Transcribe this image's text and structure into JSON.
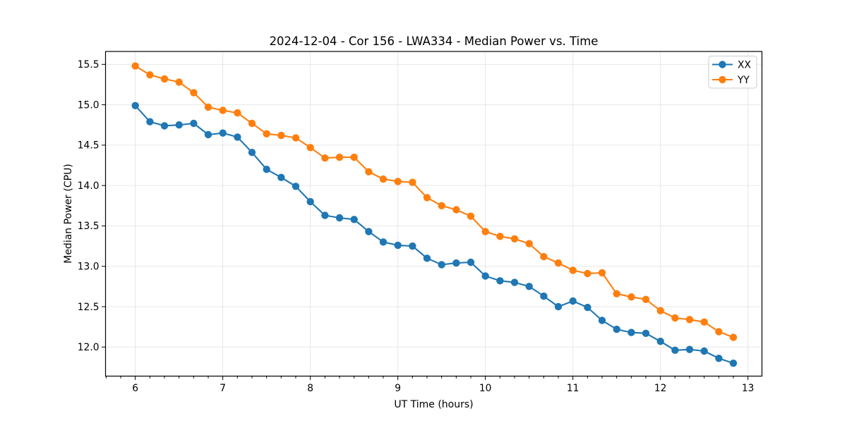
{
  "figure": {
    "background": "#ffffff"
  },
  "chart_data": {
    "type": "line",
    "title": "2024-12-04 - Cor 156 - LWA334 - Median Power vs. Time",
    "xlabel": "UT Time (hours)",
    "ylabel": "Median Power (CPU)",
    "xlim": [
      5.66,
      13.16
    ],
    "ylim": [
      11.64,
      15.66
    ],
    "x_major_ticks": [
      6,
      7,
      8,
      9,
      10,
      11,
      12,
      13
    ],
    "x_minor_step": 0.1667,
    "y_major_ticks": [
      12.0,
      12.5,
      13.0,
      13.5,
      14.0,
      14.5,
      15.0,
      15.5
    ],
    "grid": "major-only",
    "legend": {
      "position": "upper-right"
    },
    "x": [
      6.0,
      6.167,
      6.333,
      6.5,
      6.667,
      6.833,
      7.0,
      7.167,
      7.333,
      7.5,
      7.667,
      7.833,
      8.0,
      8.167,
      8.333,
      8.5,
      8.667,
      8.833,
      9.0,
      9.167,
      9.333,
      9.5,
      9.667,
      9.833,
      10.0,
      10.167,
      10.333,
      10.5,
      10.667,
      10.833,
      11.0,
      11.167,
      11.333,
      11.5,
      11.667,
      11.833,
      12.0,
      12.167,
      12.333,
      12.5,
      12.667,
      12.833
    ],
    "series": [
      {
        "name": "XX",
        "color": "#1f77b4",
        "marker": "circle",
        "values": [
          14.99,
          14.79,
          14.74,
          14.75,
          14.77,
          14.63,
          14.65,
          14.6,
          14.41,
          14.2,
          14.1,
          13.99,
          13.8,
          13.63,
          13.6,
          13.58,
          13.43,
          13.3,
          13.26,
          13.25,
          13.1,
          13.02,
          13.04,
          13.05,
          12.88,
          12.82,
          12.8,
          12.75,
          12.63,
          12.5,
          12.57,
          12.49,
          12.33,
          12.22,
          12.18,
          12.17,
          12.07,
          11.96,
          11.97,
          11.95,
          11.86,
          11.8
        ]
      },
      {
        "name": "YY",
        "color": "#ff7f0e",
        "marker": "circle",
        "values": [
          15.48,
          15.37,
          15.32,
          15.28,
          15.15,
          14.97,
          14.93,
          14.9,
          14.77,
          14.64,
          14.62,
          14.59,
          14.47,
          14.34,
          14.35,
          14.35,
          14.17,
          14.08,
          14.05,
          14.04,
          13.85,
          13.75,
          13.7,
          13.62,
          13.43,
          13.37,
          13.34,
          13.28,
          13.12,
          13.04,
          12.95,
          12.91,
          12.92,
          12.66,
          12.62,
          12.59,
          12.45,
          12.36,
          12.34,
          12.31,
          12.19,
          12.12
        ]
      }
    ]
  }
}
